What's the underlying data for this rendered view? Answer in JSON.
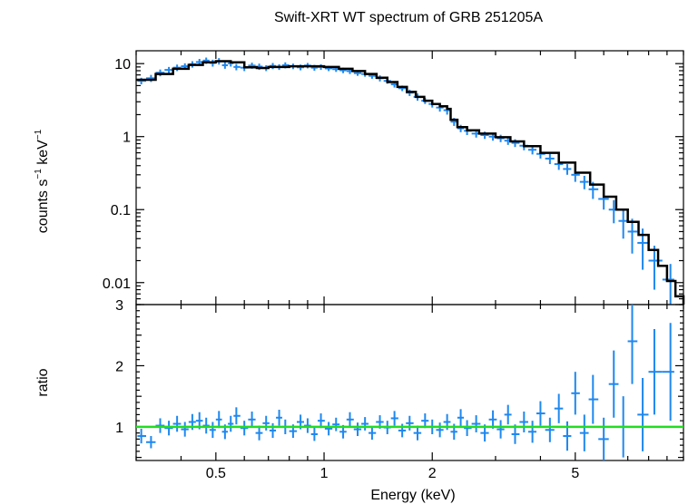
{
  "colors": {
    "data": "#1e88f0",
    "model": "#000000",
    "reference": "#22dd22",
    "axis": "#000000"
  },
  "chart_data": [
    {
      "type": "scatter",
      "panel": "spectrum",
      "title": "Swift-XRT WT spectrum of GRB 251205A",
      "xlabel": "Energy (keV)",
      "ylabel_main": "counts s",
      "ylabel_exp1": "−1",
      "ylabel_mid": " keV",
      "ylabel_exp2": "−1",
      "xscale": "log",
      "yscale": "log",
      "xlim": [
        0.3,
        10
      ],
      "ylim": [
        0.005,
        15
      ],
      "yticks": [
        {
          "value": 10,
          "label": "10"
        },
        {
          "value": 1,
          "label": "1"
        },
        {
          "value": 0.1,
          "label": "0.1"
        },
        {
          "value": 0.01,
          "label": "0.01"
        }
      ],
      "series": [
        {
          "name": "data",
          "style": "errorbar",
          "points": [
            [
              0.31,
              5.8,
              0.6
            ],
            [
              0.33,
              6.3,
              0.7
            ],
            [
              0.35,
              7.5,
              0.8
            ],
            [
              0.37,
              8.2,
              0.8
            ],
            [
              0.39,
              8.8,
              0.9
            ],
            [
              0.41,
              9.2,
              0.9
            ],
            [
              0.43,
              9.8,
              1.0
            ],
            [
              0.45,
              10.5,
              1.1
            ],
            [
              0.47,
              11.0,
              1.1
            ],
            [
              0.49,
              10.2,
              1.1
            ],
            [
              0.51,
              10.8,
              1.1
            ],
            [
              0.53,
              9.5,
              1.0
            ],
            [
              0.55,
              10.1,
              1.0
            ],
            [
              0.57,
              9.0,
              0.9
            ],
            [
              0.6,
              8.8,
              0.9
            ],
            [
              0.63,
              9.4,
              0.9
            ],
            [
              0.66,
              9.1,
              0.9
            ],
            [
              0.69,
              8.7,
              0.8
            ],
            [
              0.72,
              9.3,
              0.9
            ],
            [
              0.75,
              9.0,
              0.8
            ],
            [
              0.78,
              9.5,
              0.9
            ],
            [
              0.82,
              9.2,
              0.8
            ],
            [
              0.86,
              8.9,
              0.8
            ],
            [
              0.9,
              9.4,
              0.8
            ],
            [
              0.94,
              8.8,
              0.8
            ],
            [
              0.98,
              9.0,
              0.8
            ],
            [
              1.03,
              8.6,
              0.7
            ],
            [
              1.08,
              8.4,
              0.7
            ],
            [
              1.13,
              8.1,
              0.7
            ],
            [
              1.18,
              7.9,
              0.7
            ],
            [
              1.24,
              7.4,
              0.6
            ],
            [
              1.3,
              7.2,
              0.6
            ],
            [
              1.36,
              6.8,
              0.6
            ],
            [
              1.43,
              6.3,
              0.6
            ],
            [
              1.5,
              5.8,
              0.5
            ],
            [
              1.57,
              5.2,
              0.5
            ],
            [
              1.65,
              4.6,
              0.4
            ],
            [
              1.73,
              4.0,
              0.4
            ],
            [
              1.82,
              3.5,
              0.4
            ],
            [
              1.91,
              3.1,
              0.3
            ],
            [
              2.0,
              2.8,
              0.3
            ],
            [
              2.1,
              2.5,
              0.3
            ],
            [
              2.2,
              2.3,
              0.3
            ],
            [
              2.3,
              1.6,
              0.2
            ],
            [
              2.4,
              1.3,
              0.15
            ],
            [
              2.5,
              1.2,
              0.15
            ],
            [
              2.65,
              1.1,
              0.13
            ],
            [
              2.8,
              1.05,
              0.12
            ],
            [
              2.95,
              1.0,
              0.12
            ],
            [
              3.1,
              0.95,
              0.11
            ],
            [
              3.25,
              0.88,
              0.11
            ],
            [
              3.4,
              0.82,
              0.1
            ],
            [
              3.6,
              0.75,
              0.1
            ],
            [
              3.8,
              0.66,
              0.09
            ],
            [
              4.0,
              0.58,
              0.08
            ],
            [
              4.25,
              0.5,
              0.08
            ],
            [
              4.5,
              0.42,
              0.07
            ],
            [
              4.75,
              0.36,
              0.06
            ],
            [
              5.0,
              0.3,
              0.06
            ],
            [
              5.3,
              0.24,
              0.05
            ],
            [
              5.6,
              0.19,
              0.05
            ],
            [
              6.0,
              0.14,
              0.04
            ],
            [
              6.4,
              0.1,
              0.035
            ],
            [
              6.8,
              0.07,
              0.03
            ],
            [
              7.2,
              0.05,
              0.025
            ],
            [
              7.7,
              0.035,
              0.02
            ],
            [
              8.3,
              0.02,
              0.012
            ],
            [
              9.2,
              0.011,
              0.007
            ]
          ]
        },
        {
          "name": "model",
          "style": "step",
          "points": [
            [
              0.3,
              6.0
            ],
            [
              0.34,
              7.2
            ],
            [
              0.38,
              8.5
            ],
            [
              0.42,
              9.6
            ],
            [
              0.46,
              10.4
            ],
            [
              0.5,
              10.8
            ],
            [
              0.55,
              10.4
            ],
            [
              0.6,
              8.9
            ],
            [
              0.65,
              8.7
            ],
            [
              0.7,
              9.0
            ],
            [
              0.8,
              9.2
            ],
            [
              0.9,
              9.2
            ],
            [
              1.0,
              9.0
            ],
            [
              1.1,
              8.5
            ],
            [
              1.2,
              7.9
            ],
            [
              1.3,
              7.2
            ],
            [
              1.4,
              6.4
            ],
            [
              1.5,
              5.6
            ],
            [
              1.6,
              4.8
            ],
            [
              1.7,
              4.1
            ],
            [
              1.8,
              3.5
            ],
            [
              1.9,
              3.1
            ],
            [
              2.0,
              2.8
            ],
            [
              2.1,
              2.6
            ],
            [
              2.2,
              2.4
            ],
            [
              2.25,
              1.7
            ],
            [
              2.35,
              1.35
            ],
            [
              2.5,
              1.22
            ],
            [
              2.7,
              1.1
            ],
            [
              3.0,
              0.98
            ],
            [
              3.3,
              0.86
            ],
            [
              3.6,
              0.74
            ],
            [
              4.0,
              0.6
            ],
            [
              4.5,
              0.44
            ],
            [
              5.0,
              0.32
            ],
            [
              5.5,
              0.22
            ],
            [
              6.0,
              0.15
            ],
            [
              6.5,
              0.1
            ],
            [
              7.0,
              0.068
            ],
            [
              7.5,
              0.045
            ],
            [
              8.0,
              0.028
            ],
            [
              8.5,
              0.017
            ],
            [
              9.0,
              0.0105
            ],
            [
              9.5,
              0.0065
            ],
            [
              10.0,
              0.004
            ]
          ]
        }
      ]
    },
    {
      "type": "scatter",
      "panel": "ratio",
      "xlabel": "Energy (keV)",
      "ylabel": "ratio",
      "xscale": "log",
      "yscale": "linear",
      "xlim": [
        0.3,
        10
      ],
      "ylim": [
        0.45,
        3.0
      ],
      "yticks": [
        {
          "value": 1,
          "label": "1"
        },
        {
          "value": 2,
          "label": "2"
        },
        {
          "value": 3,
          "label": "3"
        }
      ],
      "xticks": [
        {
          "value": 0.5,
          "label": "0.5"
        },
        {
          "value": 1,
          "label": "1"
        },
        {
          "value": 2,
          "label": "2"
        },
        {
          "value": 5,
          "label": "5"
        }
      ],
      "reference_line": 1.0,
      "series": [
        {
          "name": "data",
          "style": "errorbar",
          "points": [
            [
              0.31,
              0.85,
              0.12
            ],
            [
              0.33,
              0.75,
              0.1
            ],
            [
              0.35,
              1.02,
              0.12
            ],
            [
              0.37,
              0.98,
              0.12
            ],
            [
              0.39,
              1.05,
              0.13
            ],
            [
              0.41,
              0.96,
              0.12
            ],
            [
              0.43,
              1.08,
              0.13
            ],
            [
              0.45,
              1.1,
              0.14
            ],
            [
              0.47,
              1.02,
              0.13
            ],
            [
              0.49,
              0.95,
              0.13
            ],
            [
              0.51,
              1.12,
              0.14
            ],
            [
              0.53,
              0.92,
              0.12
            ],
            [
              0.55,
              1.05,
              0.13
            ],
            [
              0.57,
              1.18,
              0.14
            ],
            [
              0.6,
              0.98,
              0.12
            ],
            [
              0.63,
              1.12,
              0.13
            ],
            [
              0.66,
              0.9,
              0.12
            ],
            [
              0.69,
              1.06,
              0.12
            ],
            [
              0.72,
              0.94,
              0.12
            ],
            [
              0.75,
              1.15,
              0.13
            ],
            [
              0.78,
              1.0,
              0.12
            ],
            [
              0.82,
              0.93,
              0.11
            ],
            [
              0.86,
              1.08,
              0.12
            ],
            [
              0.9,
              1.02,
              0.12
            ],
            [
              0.94,
              0.88,
              0.11
            ],
            [
              0.98,
              1.1,
              0.12
            ],
            [
              1.03,
              0.97,
              0.11
            ],
            [
              1.08,
              1.04,
              0.11
            ],
            [
              1.13,
              0.92,
              0.11
            ],
            [
              1.18,
              1.12,
              0.12
            ],
            [
              1.24,
              0.96,
              0.11
            ],
            [
              1.3,
              1.05,
              0.11
            ],
            [
              1.36,
              0.9,
              0.11
            ],
            [
              1.43,
              1.08,
              0.11
            ],
            [
              1.5,
              0.99,
              0.11
            ],
            [
              1.57,
              1.14,
              0.12
            ],
            [
              1.65,
              0.94,
              0.11
            ],
            [
              1.73,
              1.06,
              0.12
            ],
            [
              1.82,
              0.9,
              0.12
            ],
            [
              1.91,
              1.1,
              0.12
            ],
            [
              2.0,
              1.0,
              0.12
            ],
            [
              2.1,
              0.95,
              0.12
            ],
            [
              2.2,
              1.08,
              0.13
            ],
            [
              2.3,
              0.92,
              0.13
            ],
            [
              2.4,
              1.15,
              0.14
            ],
            [
              2.5,
              0.98,
              0.13
            ],
            [
              2.65,
              1.05,
              0.14
            ],
            [
              2.8,
              0.9,
              0.14
            ],
            [
              2.95,
              1.12,
              0.15
            ],
            [
              3.1,
              0.96,
              0.15
            ],
            [
              3.25,
              1.2,
              0.16
            ],
            [
              3.4,
              0.88,
              0.16
            ],
            [
              3.6,
              1.08,
              0.17
            ],
            [
              3.8,
              0.92,
              0.18
            ],
            [
              4.0,
              1.22,
              0.2
            ],
            [
              4.25,
              0.95,
              0.2
            ],
            [
              4.5,
              1.3,
              0.24
            ],
            [
              4.75,
              0.85,
              0.24
            ],
            [
              5.0,
              1.55,
              0.35
            ],
            [
              5.3,
              0.9,
              0.3
            ],
            [
              5.6,
              1.45,
              0.4
            ],
            [
              6.0,
              0.8,
              0.35
            ],
            [
              6.4,
              1.7,
              0.55
            ],
            [
              6.8,
              1.0,
              0.5
            ],
            [
              7.2,
              2.4,
              0.7
            ],
            [
              7.7,
              1.2,
              0.6
            ],
            [
              8.3,
              1.9,
              0.7
            ],
            [
              9.2,
              1.9,
              0.8
            ]
          ]
        }
      ]
    }
  ]
}
